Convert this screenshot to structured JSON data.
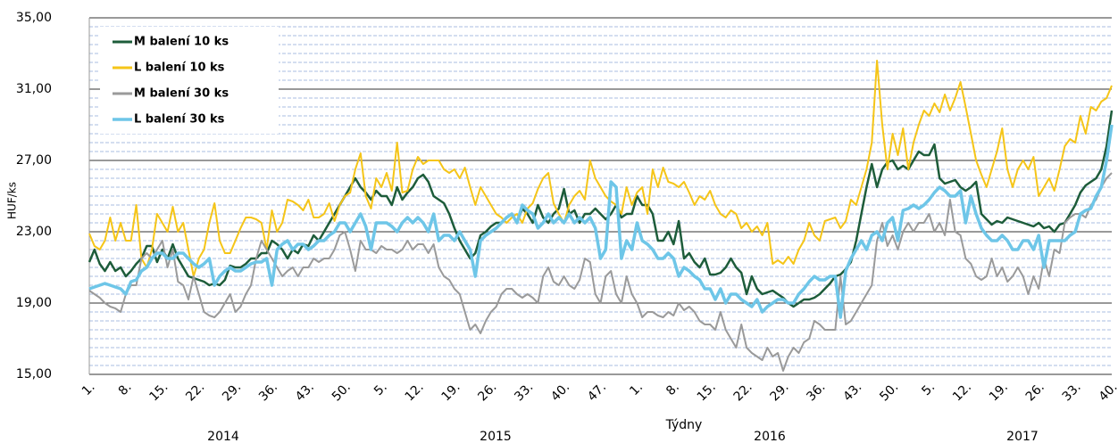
{
  "chart_data": {
    "type": "line",
    "y_label": "HUF/ks",
    "x_label": "Týdny",
    "year_labels": [
      "2014",
      "2015",
      "2016",
      "2017"
    ],
    "categories": [
      "1.",
      null,
      null,
      null,
      null,
      null,
      null,
      "8.",
      null,
      null,
      null,
      null,
      null,
      null,
      "15.",
      null,
      null,
      null,
      null,
      null,
      null,
      "22.",
      null,
      null,
      null,
      null,
      null,
      null,
      "29.",
      null,
      null,
      null,
      null,
      null,
      null,
      "36.",
      null,
      null,
      null,
      null,
      null,
      null,
      "43.",
      null,
      null,
      null,
      null,
      null,
      null,
      "50.",
      null,
      null,
      null,
      null,
      null,
      null,
      "5.",
      null,
      null,
      null,
      null,
      null,
      null,
      "12.",
      null,
      null,
      null,
      null,
      null,
      null,
      "19.",
      null,
      null,
      null,
      null,
      null,
      null,
      "26.",
      null,
      null,
      null,
      null,
      null,
      null,
      "33.",
      null,
      null,
      null,
      null,
      null,
      null,
      "40.",
      null,
      null,
      null,
      null,
      null,
      null,
      "47.",
      null,
      null,
      null,
      null,
      null,
      null,
      "1.",
      null,
      null,
      null,
      null,
      null,
      null,
      "8.",
      null,
      null,
      null,
      null,
      null,
      null,
      "15.",
      null,
      null,
      null,
      null,
      null,
      null,
      "22.",
      null,
      null,
      null,
      null,
      null,
      null,
      "29.",
      null,
      null,
      null,
      null,
      null,
      null,
      "36.",
      null,
      null,
      null,
      null,
      null,
      null,
      "43.",
      null,
      null,
      null,
      null,
      null,
      null,
      "50.",
      null,
      null,
      null,
      null,
      null,
      null,
      "5.",
      null,
      null,
      null,
      null,
      null,
      null,
      "12.",
      null,
      null,
      null,
      null,
      null,
      null,
      "19.",
      null,
      null,
      null,
      null,
      null,
      null,
      "26.",
      null,
      null,
      null,
      null,
      null,
      null,
      "33.",
      null,
      null,
      null,
      null,
      null,
      null,
      "40."
    ],
    "series": [
      {
        "name": "M balení 10 ks",
        "color": "#1d5c3a",
        "width": 2.5,
        "values": [
          21.3,
          22.0,
          21.2,
          20.8,
          21.3,
          20.8,
          21.0,
          20.5,
          20.8,
          21.2,
          21.5,
          22.2,
          22.2,
          21.3,
          22.0,
          21.5,
          22.3,
          21.5,
          21.0,
          20.5,
          20.4,
          20.3,
          20.2,
          20.0,
          20.1,
          20.0,
          20.3,
          21.1,
          21.0,
          21.0,
          21.2,
          21.5,
          21.5,
          21.8,
          21.8,
          22.5,
          22.3,
          22.0,
          21.5,
          22.0,
          21.8,
          22.3,
          22.2,
          22.8,
          22.5,
          23.0,
          23.5,
          24.0,
          24.5,
          25.0,
          25.5,
          26.0,
          25.5,
          25.2,
          24.8,
          25.3,
          25.0,
          25.0,
          24.5,
          25.5,
          24.8,
          25.2,
          25.5,
          26.0,
          26.2,
          25.8,
          25.0,
          24.8,
          24.6,
          24.0,
          23.2,
          22.5,
          22.0,
          21.5,
          21.8,
          22.8,
          23.0,
          23.3,
          23.5,
          23.5,
          23.8,
          24.0,
          23.5,
          24.3,
          24.0,
          23.5,
          24.5,
          23.8,
          23.5,
          24.0,
          24.3,
          25.4,
          24.0,
          24.2,
          23.5,
          24.0,
          24.0,
          24.3,
          24.0,
          23.7,
          24.0,
          24.5,
          23.8,
          24.0,
          24.0,
          25.0,
          24.5,
          24.5,
          24.0,
          22.5,
          22.5,
          23.0,
          22.3,
          23.6,
          21.5,
          21.8,
          21.3,
          21.0,
          21.5,
          20.6,
          20.6,
          20.7,
          21.0,
          21.5,
          21.0,
          20.7,
          19.5,
          20.5,
          19.8,
          19.5,
          19.6,
          19.7,
          19.5,
          19.3,
          19.0,
          18.8,
          19.0,
          19.2,
          19.2,
          19.3,
          19.5,
          19.8,
          20.1,
          20.5,
          20.6,
          20.9,
          21.3,
          22.5,
          24.0,
          25.5,
          26.8,
          25.5,
          26.5,
          26.9,
          27.0,
          26.5,
          26.7,
          26.5,
          27.0,
          27.5,
          27.3,
          27.3,
          27.9,
          26.0,
          25.7,
          25.8,
          25.9,
          25.5,
          25.3,
          25.5,
          25.8,
          24.0,
          23.7,
          23.4,
          23.6,
          23.5,
          23.8,
          23.7,
          23.6,
          23.5,
          23.4,
          23.3,
          23.5,
          23.2,
          23.3,
          23.0,
          23.4,
          23.5,
          24.0,
          24.5,
          25.2,
          25.6,
          25.8,
          26.0,
          26.5,
          27.8,
          29.8
        ]
      },
      {
        "name": "L balení 10 ks",
        "color": "#f5c518",
        "width": 2,
        "values": [
          22.9,
          22.2,
          22.0,
          22.5,
          23.8,
          22.5,
          23.5,
          22.5,
          22.5,
          24.5,
          21.5,
          21.0,
          22.0,
          24.0,
          23.5,
          23.0,
          24.4,
          23.0,
          23.5,
          22.0,
          20.5,
          21.5,
          22.0,
          23.5,
          24.6,
          22.5,
          21.8,
          21.8,
          22.5,
          23.2,
          23.8,
          23.8,
          23.7,
          23.5,
          22.0,
          24.2,
          23.0,
          23.5,
          24.8,
          24.7,
          24.5,
          24.2,
          24.8,
          23.8,
          23.8,
          24.0,
          24.6,
          23.6,
          24.5,
          25.0,
          25.2,
          26.5,
          27.4,
          25.0,
          24.3,
          26.0,
          25.5,
          26.3,
          25.3,
          28.0,
          25.2,
          25.3,
          26.5,
          27.2,
          26.8,
          27.0,
          27.0,
          27.0,
          26.5,
          26.3,
          26.5,
          26.0,
          26.6,
          25.5,
          24.5,
          25.5,
          25.0,
          24.5,
          24.0,
          23.8,
          23.5,
          23.8,
          24.0,
          23.5,
          24.3,
          24.6,
          25.4,
          26.0,
          26.3,
          24.6,
          24.0,
          23.5,
          24.5,
          25.0,
          25.3,
          24.8,
          27.0,
          26.0,
          25.5,
          25.0,
          24.7,
          24.5,
          24.0,
          25.5,
          24.5,
          25.2,
          25.5,
          24.0,
          26.5,
          25.5,
          26.6,
          25.8,
          25.7,
          25.5,
          25.8,
          25.2,
          24.5,
          25.0,
          24.8,
          25.3,
          24.5,
          24.0,
          23.8,
          24.2,
          24.0,
          23.2,
          23.5,
          23.0,
          23.3,
          22.8,
          23.5,
          21.2,
          21.4,
          21.2,
          21.6,
          21.2,
          22.0,
          22.5,
          23.5,
          22.8,
          22.5,
          23.6,
          23.7,
          23.8,
          23.2,
          23.6,
          24.8,
          24.5,
          25.5,
          26.5,
          28.0,
          32.6,
          29.0,
          26.5,
          28.5,
          27.3,
          28.8,
          26.5,
          28.0,
          29.0,
          29.8,
          29.5,
          30.2,
          29.7,
          30.7,
          29.8,
          30.5,
          31.4,
          30.0,
          28.5,
          27.0,
          26.2,
          25.5,
          26.5,
          27.5,
          28.8,
          26.5,
          25.5,
          26.5,
          27.0,
          26.5,
          27.2,
          25.0,
          25.5,
          26.0,
          25.3,
          26.5,
          27.8,
          28.2,
          28.0,
          29.5,
          28.5,
          30.0,
          29.8,
          30.3,
          30.5,
          31.2
        ]
      },
      {
        "name": "M balení 30 ks",
        "color": "#9a9a9a",
        "width": 2,
        "values": [
          19.7,
          19.5,
          19.3,
          19.0,
          18.8,
          18.7,
          18.5,
          19.5,
          20.0,
          20.0,
          21.5,
          21.8,
          21.5,
          22.0,
          22.5,
          21.0,
          22.0,
          20.2,
          20.0,
          19.2,
          20.5,
          19.5,
          18.5,
          18.3,
          18.2,
          18.5,
          19.0,
          19.5,
          18.5,
          18.8,
          19.5,
          20.0,
          21.5,
          22.5,
          22.0,
          21.5,
          21.0,
          20.5,
          20.8,
          21.0,
          20.5,
          21.0,
          21.0,
          21.5,
          21.3,
          21.5,
          21.5,
          22.0,
          22.8,
          23.0,
          22.0,
          20.8,
          22.5,
          22.0,
          22.0,
          21.8,
          22.2,
          22.0,
          22.0,
          21.8,
          22.0,
          22.5,
          22.0,
          22.3,
          22.3,
          21.8,
          22.3,
          21.0,
          20.5,
          20.3,
          19.8,
          19.5,
          18.5,
          17.5,
          17.8,
          17.3,
          18.0,
          18.5,
          18.8,
          19.5,
          19.8,
          19.8,
          19.5,
          19.3,
          19.5,
          19.3,
          19.0,
          20.5,
          21.0,
          20.2,
          20.0,
          20.5,
          20.0,
          19.8,
          20.3,
          21.5,
          21.3,
          19.5,
          19.0,
          20.5,
          20.8,
          19.5,
          19.0,
          20.5,
          19.5,
          19.0,
          18.2,
          18.5,
          18.5,
          18.3,
          18.2,
          18.5,
          18.3,
          19.0,
          18.6,
          18.8,
          18.5,
          18.0,
          17.8,
          17.8,
          17.5,
          18.5,
          17.5,
          17.0,
          16.5,
          17.8,
          16.5,
          16.2,
          16.0,
          15.8,
          16.5,
          16.0,
          16.2,
          15.2,
          16.0,
          16.5,
          16.2,
          16.8,
          17.0,
          18.0,
          17.8,
          17.5,
          17.5,
          17.5,
          20.5,
          17.8,
          18.0,
          18.5,
          19.0,
          19.5,
          20.0,
          22.5,
          23.5,
          22.2,
          22.8,
          22.0,
          23.0,
          23.5,
          23.0,
          23.5,
          23.5,
          24.0,
          23.0,
          23.5,
          22.8,
          24.8,
          23.0,
          22.8,
          21.5,
          21.2,
          20.5,
          20.3,
          20.5,
          21.5,
          20.5,
          21.0,
          20.2,
          20.5,
          21.0,
          20.5,
          19.5,
          20.5,
          19.8,
          21.5,
          20.5,
          22.0,
          21.8,
          23.5,
          23.8,
          24.0,
          24.0,
          23.8,
          24.5,
          24.8,
          25.5,
          26.0,
          26.3
        ]
      },
      {
        "name": "L balení 30 ks",
        "color": "#6ec6e8",
        "width": 3.5,
        "values": [
          19.8,
          19.9,
          20.0,
          20.1,
          20.0,
          19.9,
          19.8,
          19.5,
          20.2,
          20.3,
          20.8,
          21.0,
          21.5,
          21.8,
          21.8,
          21.5,
          21.5,
          21.8,
          21.8,
          21.5,
          21.2,
          21.0,
          21.2,
          21.5,
          20.0,
          20.5,
          20.8,
          21.0,
          20.8,
          20.8,
          21.0,
          21.2,
          21.3,
          21.3,
          21.5,
          20.0,
          22.0,
          22.3,
          22.5,
          22.0,
          22.3,
          22.3,
          22.0,
          22.2,
          22.5,
          22.5,
          22.8,
          23.0,
          23.5,
          23.5,
          23.0,
          23.5,
          24.0,
          23.3,
          22.0,
          23.5,
          23.5,
          23.5,
          23.3,
          23.0,
          23.5,
          23.8,
          23.5,
          23.8,
          23.5,
          23.0,
          24.0,
          22.5,
          22.8,
          22.8,
          22.5,
          23.0,
          22.5,
          22.0,
          20.5,
          22.5,
          22.8,
          23.0,
          23.2,
          23.5,
          23.8,
          24.0,
          23.5,
          24.5,
          24.2,
          24.0,
          23.2,
          23.5,
          24.0,
          23.5,
          23.8,
          23.5,
          24.0,
          23.5,
          23.8,
          23.5,
          23.8,
          23.2,
          21.5,
          22.0,
          25.8,
          25.5,
          21.5,
          22.5,
          22.0,
          23.5,
          22.5,
          22.3,
          22.0,
          21.5,
          21.5,
          21.8,
          21.5,
          20.5,
          21.0,
          20.8,
          20.5,
          20.3,
          19.8,
          19.8,
          19.2,
          19.8,
          19.0,
          19.5,
          19.5,
          19.2,
          19.0,
          18.8,
          19.2,
          18.5,
          18.8,
          19.0,
          19.2,
          19.2,
          19.0,
          19.0,
          19.5,
          19.8,
          20.2,
          20.5,
          20.3,
          20.3,
          20.5,
          20.5,
          18.2,
          20.8,
          21.5,
          22.0,
          22.5,
          22.0,
          22.8,
          23.0,
          22.5,
          23.5,
          23.8,
          22.5,
          24.2,
          24.3,
          24.5,
          24.3,
          24.5,
          24.8,
          25.2,
          25.5,
          25.3,
          25.0,
          25.0,
          25.3,
          23.5,
          25.0,
          24.0,
          23.2,
          22.8,
          22.5,
          22.5,
          22.8,
          22.5,
          22.0,
          22.0,
          22.5,
          22.5,
          22.0,
          22.8,
          21.0,
          22.5,
          22.5,
          22.5,
          22.5,
          22.8,
          23.0,
          24.0,
          24.2,
          24.3,
          25.0,
          25.5,
          27.0,
          29.0
        ]
      }
    ],
    "ylim": [
      15,
      35
    ],
    "yticks": [
      {
        "value": 15,
        "label": "15,00"
      },
      {
        "value": 19,
        "label": "19,00"
      },
      {
        "value": 23,
        "label": "23,00"
      },
      {
        "value": 27,
        "label": "27,00"
      },
      {
        "value": 31,
        "label": "31,00"
      },
      {
        "value": 35,
        "label": "35,00"
      }
    ],
    "grid": true,
    "minor_grid": true,
    "legend": "upper left"
  }
}
